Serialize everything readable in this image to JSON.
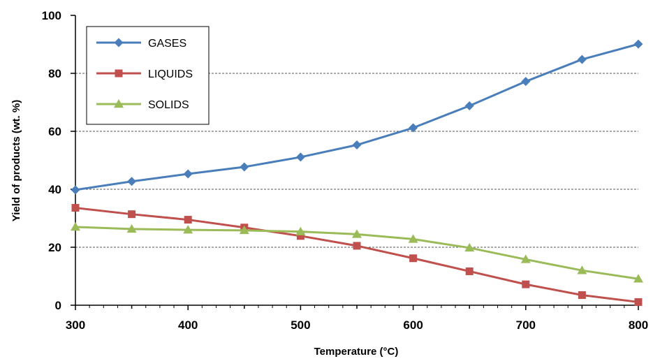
{
  "chart_data": {
    "type": "line",
    "xlabel": "Temperature (°C)",
    "ylabel": "Yield of products (wt. %)",
    "xlim": [
      300,
      800
    ],
    "ylim": [
      0,
      100
    ],
    "xticks": [
      300,
      400,
      500,
      600,
      700,
      800
    ],
    "xticks_minor_step": 50,
    "yticks": [
      0,
      20,
      40,
      60,
      80,
      100
    ],
    "grid": "horizontal dashed at 20, 40, 60, 80",
    "legend_position": "top-left",
    "x": [
      300,
      350,
      400,
      450,
      500,
      550,
      600,
      650,
      700,
      750,
      800
    ],
    "series": [
      {
        "name": "GASES",
        "color": "#4a7ebb",
        "marker": "diamond",
        "values": [
          39.8,
          42.7,
          45.3,
          47.7,
          51.1,
          55.3,
          61.2,
          68.8,
          77.2,
          84.8,
          90.1
        ]
      },
      {
        "name": "LIQUIDS",
        "color": "#c0504d",
        "marker": "square",
        "values": [
          33.6,
          31.4,
          29.5,
          26.8,
          23.9,
          20.5,
          16.2,
          11.7,
          7.2,
          3.5,
          1.1
        ]
      },
      {
        "name": "SOLIDS",
        "color": "#9bbb59",
        "marker": "triangle",
        "values": [
          27.0,
          26.3,
          26.0,
          25.8,
          25.4,
          24.5,
          22.8,
          19.8,
          15.8,
          12.0,
          9.1
        ]
      }
    ]
  }
}
